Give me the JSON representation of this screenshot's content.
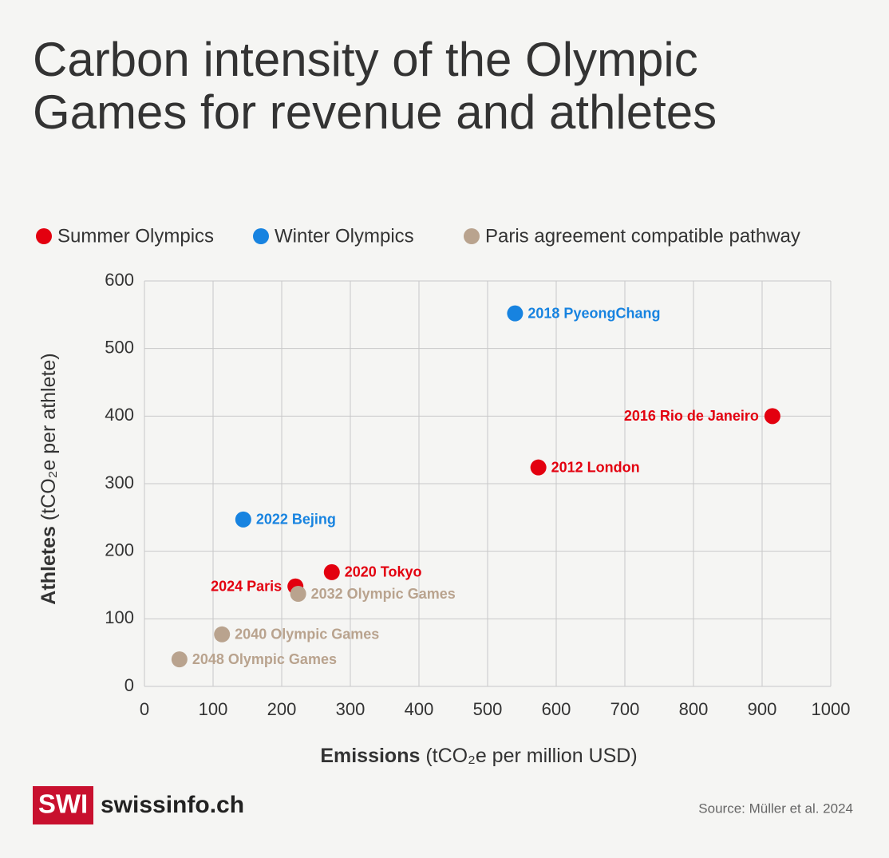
{
  "chart_data": {
    "type": "scatter",
    "title": "Carbon intensity of the Olympic Games for revenue and athletes",
    "x_label_main": "Emissions",
    "x_label_unit": "(tCO₂e per million USD)",
    "y_label_main": "Athletes",
    "y_label_unit": "(tCO₂e per athlete)",
    "xlim": [
      0,
      1000
    ],
    "xticks": [
      0,
      100,
      200,
      300,
      400,
      500,
      600,
      700,
      800,
      900,
      1000
    ],
    "ylim": [
      0,
      600
    ],
    "yticks": [
      0,
      100,
      200,
      300,
      400,
      500,
      600
    ],
    "grid": true,
    "series": [
      {
        "name": "Summer Olympics",
        "color": "#e3000f",
        "x": [
          915,
          574,
          273,
          220
        ],
        "values": [
          400,
          324,
          169,
          148
        ],
        "labels": [
          "2016 Rio de Janeiro",
          "2012 London",
          "2020 Tokyo",
          "2024 Paris"
        ]
      },
      {
        "name": "Winter Olympics",
        "color": "#1783e0",
        "x": [
          540,
          144
        ],
        "values": [
          552,
          247
        ],
        "labels": [
          "2018 PyeongChang",
          "2022 Bejing"
        ]
      },
      {
        "name": "Paris agreement compatible pathway",
        "color": "#b9a38e",
        "x": [
          224,
          113,
          51
        ],
        "values": [
          137,
          77,
          40
        ],
        "labels": [
          "2032 Olympic Games",
          "2040 Olympic Games",
          "2048 Olympic Games"
        ]
      }
    ],
    "brand_badge": "SWI",
    "brand_name": "swissinfo.ch",
    "source": "Source: Müller et al. 2024"
  }
}
